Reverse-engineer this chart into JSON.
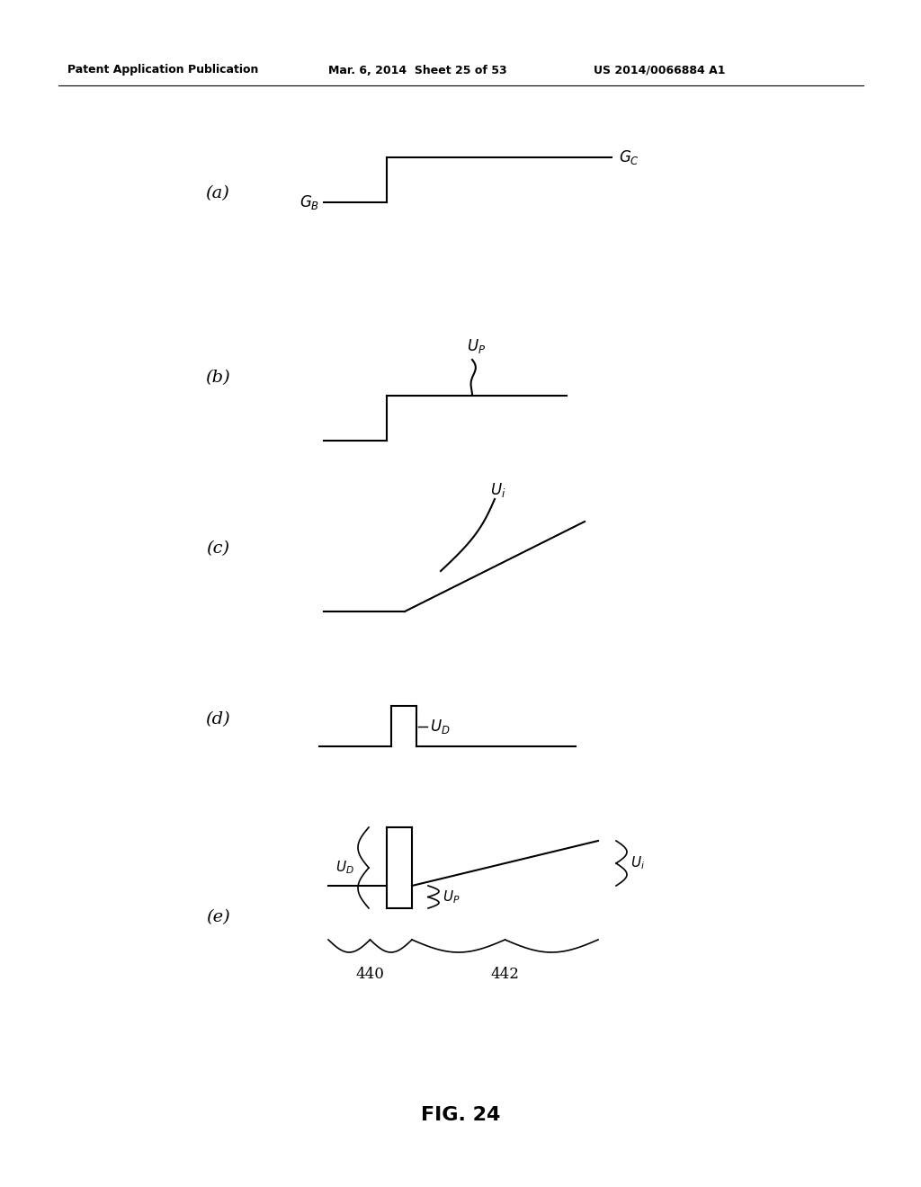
{
  "bg_color": "#ffffff",
  "text_color": "#000000",
  "line_color": "#000000",
  "header_left": "Patent Application Publication",
  "header_center": "Mar. 6, 2014  Sheet 25 of 53",
  "header_right": "US 2014/0066884 A1",
  "figure_title": "FIG. 24"
}
